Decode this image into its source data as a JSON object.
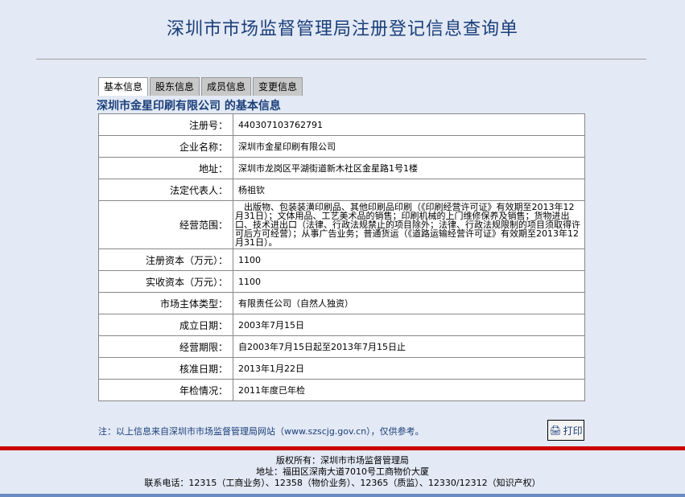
{
  "title": "深圳市市场监督管理局注册登记信息查询单",
  "tabs": [
    {
      "label": "基本信息"
    },
    {
      "label": "股东信息"
    },
    {
      "label": "成员信息"
    },
    {
      "label": "变更信息"
    }
  ],
  "subtitle": "深圳市金星印刷有限公司 的基本信息",
  "rows": [
    {
      "label": "注册号：",
      "value": "440307103762791"
    },
    {
      "label": "企业名称：",
      "value": "深圳市金星印刷有限公司"
    },
    {
      "label": "地址：",
      "value": "深圳市龙岗区平湖街道新木社区金星路1号1楼"
    },
    {
      "label": "法定代表人：",
      "value": "杨祖钦"
    },
    {
      "label": "经营范围：",
      "value": "　出版物、包装装潢印刷品、其他印刷品印刷（《印刷经营许可证》有效期至2013年12月31日）；文体用品、工艺美术品的销售；印刷机械的上门维修保养及销售；货物进出口、技术进出口（法律、行政法规禁止的项目除外；法律、行政法规限制的项目须取得许可后方可经营）；从事广告业务；普通货运（《道路运输经营许可证》有效期至2013年12月31日）。"
    },
    {
      "label": "注册资本（万元）：",
      "value": "1100"
    },
    {
      "label": "实收资本（万元）：",
      "value": "1100"
    },
    {
      "label": "市场主体类型：",
      "value": "有限责任公司（自然人独资）"
    },
    {
      "label": "成立日期：",
      "value": "2003年7月15日"
    },
    {
      "label": "经营期限：",
      "value": "自2003年7月15日起至2013年7月15日止"
    },
    {
      "label": "核准日期：",
      "value": "2013年1月22日"
    },
    {
      "label": "年检情况：",
      "value": "2011年度已年检"
    }
  ],
  "note": "注：以上信息来自深圳市市场监督管理局网站（www.szscjg.gov.cn），仅供参考。",
  "print_label": "打印",
  "footer": {
    "copyright": "版权所有：深圳市市场监督管理局",
    "address": "地址：福田区深南大道7010号工商物价大厦",
    "phone": "联系电话：12315（工商业务）、12358（物价业务）、12365（质监）、12330/12312（知识产权）"
  },
  "colors": {
    "accent": "#1a3f7a",
    "bar": "#cc0000",
    "background": "#e3e9f5"
  }
}
